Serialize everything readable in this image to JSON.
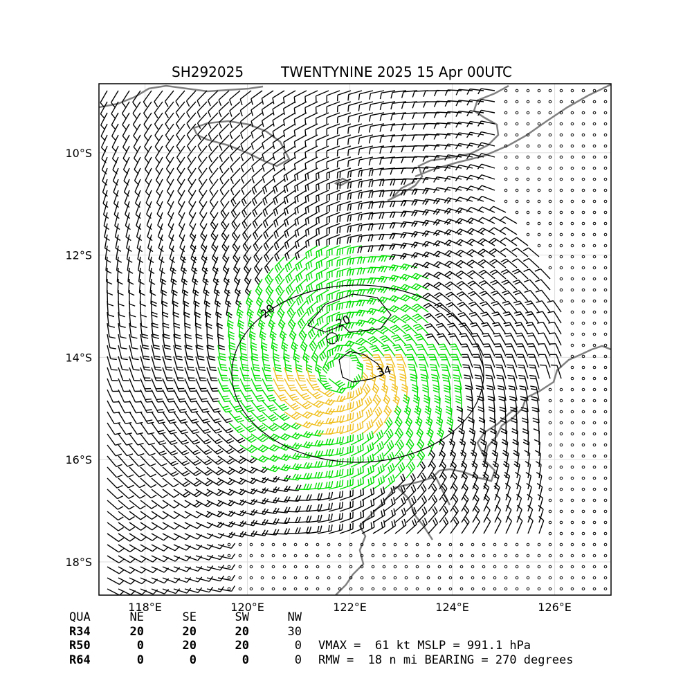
{
  "title": {
    "storm_id": "SH292025",
    "storm_info": "TWENTYNINE 2025 15 Apr 00UTC"
  },
  "map": {
    "lon_range": [
      117.1,
      127.1
    ],
    "lat_range": [
      -18.65,
      -8.65
    ],
    "lon_ticks": [
      118,
      120,
      122,
      124,
      126
    ],
    "lat_ticks": [
      -10,
      -12,
      -14,
      -16,
      -18
    ],
    "lon_labels": [
      "118°E",
      "120°E",
      "122°E",
      "124°E",
      "126°E"
    ],
    "lat_labels": [
      "10°S",
      "12°S",
      "14°S",
      "16°S",
      "18°S"
    ],
    "gridlines": true,
    "coastline_color": "#808080",
    "storm_center": {
      "lon": 121.85,
      "lat": -14.25
    },
    "wind_colors": {
      "below_34kt": "#000000",
      "34_to_49kt": "#00e000",
      "50_to_63kt": "#f0c020"
    },
    "contour_labels": [
      "20",
      "20",
      "34"
    ],
    "calm_marker": "open-circle"
  },
  "radii_table": {
    "header": [
      "QUA",
      "NE",
      "SE",
      "SW",
      "NW"
    ],
    "rows": [
      {
        "label": "R34",
        "values": [
          "20",
          "20",
          "20",
          "30"
        ]
      },
      {
        "label": "R50",
        "values": [
          "0",
          "20",
          "20",
          "0"
        ]
      },
      {
        "label": "R64",
        "values": [
          "0",
          "0",
          "0",
          "0"
        ]
      }
    ]
  },
  "stats": {
    "line1": "VMAX =  61 kt MSLP = 991.1 hPa",
    "line2": "RMW =  18 n mi BEARING = 270 degrees"
  }
}
